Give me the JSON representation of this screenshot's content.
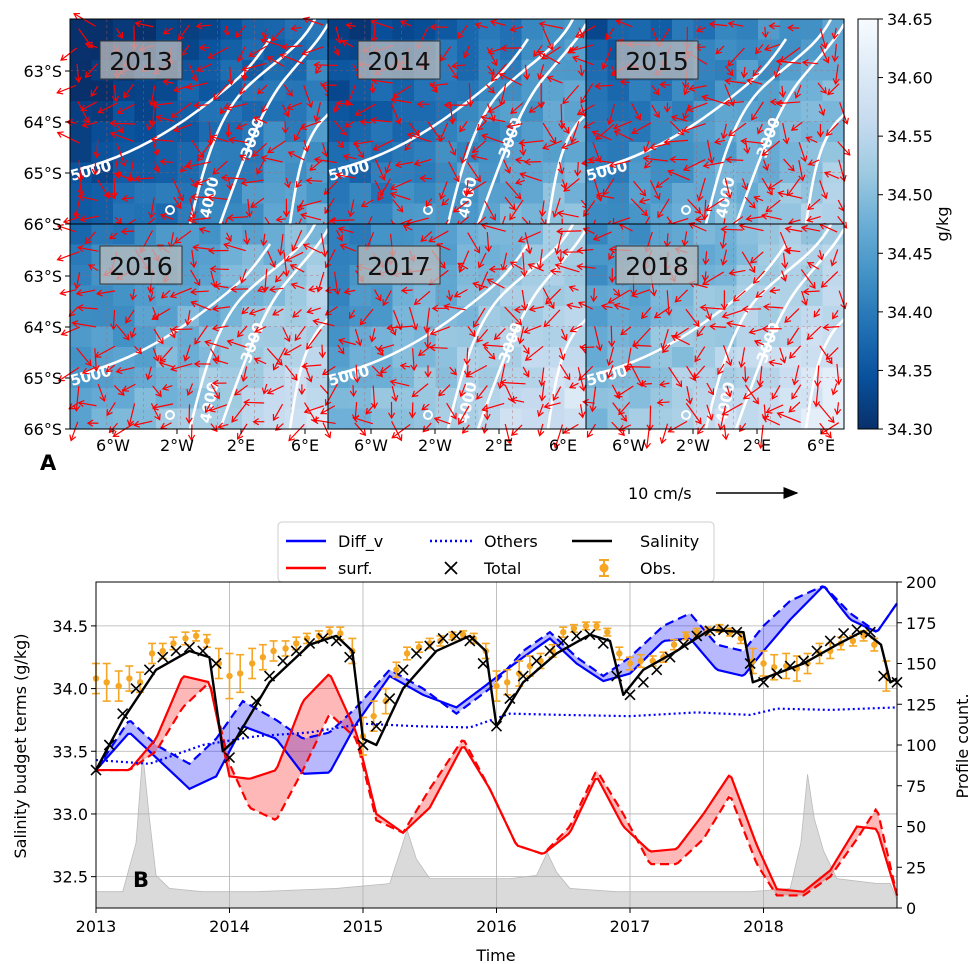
{
  "panel_a": {
    "label": "A",
    "years": [
      "2013",
      "2014",
      "2015",
      "2016",
      "2017",
      "2018"
    ],
    "lat_ticks": [
      "63°S",
      "64°S",
      "65°S",
      "66°S"
    ],
    "lon_ticks": [
      "6°W",
      "2°W",
      "2°E",
      "6°E"
    ],
    "contour_labels": [
      "5000",
      "4000",
      "3000"
    ],
    "scale_label": "10 cm/s",
    "colorbar": {
      "min": 34.3,
      "max": 34.65,
      "ticks": [
        "34.30",
        "34.35",
        "34.40",
        "34.45",
        "34.50",
        "34.55",
        "34.60",
        "34.65"
      ],
      "label": "g/kg",
      "colors": [
        "#08306b",
        "#08519c",
        "#2171b5",
        "#4292c6",
        "#6baed6",
        "#9ecae1",
        "#c6dbef",
        "#deebf7",
        "#f7fbff"
      ]
    },
    "panel_salinity_levels": [
      0.18,
      0.3,
      0.38,
      0.5,
      0.55,
      0.6
    ],
    "arrow_color": "#ff0000"
  },
  "chart_data": {
    "type": "line",
    "label": "B",
    "xlabel": "Time",
    "ylabel": "Salinity budget terms (g/kg)",
    "ylabel_right": "Profile count.",
    "xlim": [
      2013,
      2019
    ],
    "ylim": [
      32.25,
      34.85
    ],
    "ylim_right": [
      0,
      200
    ],
    "x_ticks": [
      "2013",
      "2014",
      "2015",
      "2016",
      "2017",
      "2018"
    ],
    "y_ticks": [
      "32.5",
      "33.0",
      "33.5",
      "34.0",
      "34.5"
    ],
    "y_ticks_right": [
      "0",
      "25",
      "50",
      "75",
      "100",
      "125",
      "150",
      "175",
      "200"
    ],
    "grid": true,
    "legend": {
      "placement": "top-center",
      "entries": [
        {
          "label": "Diff_v",
          "color": "#0000ff",
          "style": "solid"
        },
        {
          "label": "Others",
          "color": "#0000ff",
          "style": "dotted"
        },
        {
          "label": "Salinity",
          "color": "#000000",
          "style": "solid"
        },
        {
          "label": "surf.",
          "color": "#ff0000",
          "style": "solid"
        },
        {
          "label": "Total",
          "color": "#000000",
          "style": "x-marker"
        },
        {
          "label": "Obs.",
          "color": "#f5a623",
          "style": "errorbar"
        }
      ]
    },
    "series": [
      {
        "name": "Diff_v",
        "color": "#0000ff",
        "x": [
          2013,
          2013.25,
          2013.45,
          2013.7,
          2013.9,
          2014.1,
          2014.35,
          2014.55,
          2014.75,
          2014.95,
          2015.2,
          2015.45,
          2015.7,
          2015.95,
          2016.2,
          2016.4,
          2016.6,
          2016.8,
          2017.0,
          2017.25,
          2017.45,
          2017.65,
          2017.85,
          2018.0,
          2018.2,
          2018.45,
          2018.65,
          2018.85,
          2019.0
        ],
        "values": [
          33.35,
          33.65,
          33.45,
          33.2,
          33.3,
          33.7,
          33.6,
          33.32,
          33.33,
          33.72,
          34.1,
          33.95,
          33.85,
          34.05,
          34.25,
          34.4,
          34.2,
          34.06,
          34.12,
          34.38,
          34.4,
          34.15,
          34.1,
          34.3,
          34.55,
          34.82,
          34.55,
          34.45,
          34.68
        ]
      },
      {
        "name": "Diff_v (dashed)",
        "color": "#0000ff",
        "x": [
          2013,
          2013.25,
          2013.45,
          2013.7,
          2013.9,
          2014.1,
          2014.35,
          2014.55,
          2014.75,
          2014.95,
          2015.2,
          2015.45,
          2015.7,
          2015.95,
          2016.2,
          2016.4,
          2016.6,
          2016.8,
          2017.0,
          2017.25,
          2017.45,
          2017.65,
          2017.85,
          2018.0,
          2018.2,
          2018.45,
          2018.65,
          2018.85,
          2019.0
        ],
        "values": [
          33.35,
          33.75,
          33.55,
          33.4,
          33.6,
          33.9,
          33.75,
          33.6,
          33.65,
          33.85,
          34.15,
          34.0,
          33.8,
          34.0,
          34.3,
          34.45,
          34.25,
          34.1,
          34.25,
          34.5,
          34.6,
          34.35,
          34.3,
          34.5,
          34.7,
          34.82,
          34.6,
          34.45,
          34.68
        ]
      },
      {
        "name": "Others",
        "color": "#0000ff",
        "x": [
          2013,
          2013.4,
          2013.8,
          2014.2,
          2014.6,
          2015.0,
          2015.4,
          2015.8,
          2016.1,
          2016.5,
          2017.0,
          2017.5,
          2017.9,
          2018.1,
          2018.5,
          2019.0
        ],
        "values": [
          33.43,
          33.4,
          33.55,
          33.62,
          33.65,
          33.72,
          33.7,
          33.69,
          33.8,
          33.79,
          33.78,
          33.81,
          33.79,
          33.84,
          33.83,
          33.85
        ]
      },
      {
        "name": "surf.",
        "color": "#ff0000",
        "x": [
          2013,
          2013.25,
          2013.45,
          2013.65,
          2013.85,
          2014.0,
          2014.15,
          2014.35,
          2014.55,
          2014.75,
          2014.95,
          2015.1,
          2015.3,
          2015.5,
          2015.75,
          2015.95,
          2016.15,
          2016.35,
          2016.55,
          2016.75,
          2016.95,
          2017.15,
          2017.35,
          2017.55,
          2017.75,
          2017.95,
          2018.1,
          2018.3,
          2018.5,
          2018.7,
          2018.85,
          2019.0
        ],
        "values": [
          33.35,
          33.35,
          33.6,
          34.1,
          34.05,
          33.3,
          33.28,
          33.35,
          33.9,
          34.12,
          33.65,
          33.0,
          32.85,
          33.05,
          33.55,
          33.2,
          32.75,
          32.68,
          32.85,
          33.3,
          32.9,
          32.7,
          32.72,
          33.0,
          33.32,
          32.75,
          32.4,
          32.38,
          32.55,
          32.9,
          32.88,
          32.35
        ]
      },
      {
        "name": "surf. (dashed)",
        "color": "#ff0000",
        "x": [
          2013,
          2013.25,
          2013.45,
          2013.65,
          2013.85,
          2014.0,
          2014.15,
          2014.35,
          2014.55,
          2014.75,
          2014.95,
          2015.1,
          2015.3,
          2015.5,
          2015.75,
          2015.95,
          2016.15,
          2016.35,
          2016.55,
          2016.75,
          2016.95,
          2017.15,
          2017.35,
          2017.55,
          2017.75,
          2017.95,
          2018.1,
          2018.3,
          2018.5,
          2018.7,
          2018.85,
          2019.0
        ],
        "values": [
          33.35,
          33.35,
          33.5,
          33.85,
          34.05,
          33.4,
          33.05,
          32.95,
          33.35,
          33.8,
          33.6,
          32.95,
          32.85,
          33.2,
          33.6,
          33.2,
          32.75,
          32.68,
          32.9,
          33.35,
          33.0,
          32.6,
          32.6,
          32.8,
          33.15,
          32.6,
          32.35,
          32.35,
          32.5,
          32.8,
          33.05,
          32.35
        ]
      },
      {
        "name": "Salinity",
        "color": "#000000",
        "x": [
          2013,
          2013.2,
          2013.45,
          2013.7,
          2013.85,
          2013.95,
          2014.05,
          2014.3,
          2014.6,
          2014.8,
          2014.92,
          2015.0,
          2015.1,
          2015.3,
          2015.55,
          2015.8,
          2015.92,
          2016.0,
          2016.2,
          2016.45,
          2016.7,
          2016.85,
          2016.95,
          2017.1,
          2017.35,
          2017.6,
          2017.85,
          2017.92,
          2018.05,
          2018.3,
          2018.55,
          2018.75,
          2018.88,
          2018.95,
          2019.0
        ],
        "values": [
          33.35,
          33.75,
          34.15,
          34.3,
          34.25,
          33.5,
          33.6,
          34.05,
          34.35,
          34.42,
          34.3,
          33.6,
          33.55,
          34.0,
          34.3,
          34.42,
          34.3,
          33.7,
          34.05,
          34.28,
          34.43,
          34.38,
          33.95,
          34.15,
          34.3,
          34.47,
          34.45,
          34.05,
          34.1,
          34.2,
          34.35,
          34.46,
          34.35,
          34.05,
          34.08
        ]
      },
      {
        "name": "Total",
        "color": "#000000",
        "marker": "x",
        "x": [
          2013,
          2013.1,
          2013.2,
          2013.3,
          2013.4,
          2013.5,
          2013.6,
          2013.7,
          2013.8,
          2013.9,
          2014.0,
          2014.1,
          2014.2,
          2014.3,
          2014.4,
          2014.5,
          2014.6,
          2014.7,
          2014.8,
          2014.9,
          2015.0,
          2015.1,
          2015.2,
          2015.3,
          2015.4,
          2015.5,
          2015.6,
          2015.7,
          2015.8,
          2015.9,
          2016.0,
          2016.1,
          2016.2,
          2016.3,
          2016.4,
          2016.5,
          2016.6,
          2016.7,
          2016.8,
          2016.9,
          2017.0,
          2017.1,
          2017.2,
          2017.3,
          2017.4,
          2017.5,
          2017.6,
          2017.7,
          2017.8,
          2017.9,
          2018.0,
          2018.1,
          2018.2,
          2018.3,
          2018.4,
          2018.5,
          2018.6,
          2018.7,
          2018.8,
          2018.9,
          2019.0
        ],
        "values": [
          33.35,
          33.55,
          33.8,
          34.0,
          34.15,
          34.25,
          34.3,
          34.33,
          34.3,
          34.2,
          33.45,
          33.65,
          33.9,
          34.1,
          34.22,
          34.3,
          34.36,
          34.4,
          34.38,
          34.25,
          33.55,
          33.7,
          33.92,
          34.15,
          34.28,
          34.34,
          34.4,
          34.42,
          34.38,
          34.2,
          33.7,
          33.92,
          34.1,
          34.22,
          34.3,
          34.38,
          34.42,
          34.43,
          34.36,
          34.1,
          33.95,
          34.05,
          34.15,
          34.25,
          34.35,
          34.42,
          34.46,
          34.47,
          34.45,
          34.2,
          34.05,
          34.12,
          34.18,
          34.22,
          34.3,
          34.38,
          34.44,
          34.47,
          34.45,
          34.1,
          34.05
        ]
      },
      {
        "name": "Obs.",
        "color": "#f5a623",
        "marker": "errorbar",
        "x": [
          2013.0,
          2013.08,
          2013.17,
          2013.25,
          2013.33,
          2013.42,
          2013.5,
          2013.58,
          2013.67,
          2013.75,
          2013.83,
          2013.92,
          2014.0,
          2014.08,
          2014.17,
          2014.25,
          2014.33,
          2014.42,
          2014.5,
          2014.58,
          2014.67,
          2014.75,
          2014.83,
          2014.92,
          2015.0,
          2015.08,
          2015.17,
          2015.25,
          2015.33,
          2015.42,
          2015.5,
          2015.58,
          2015.67,
          2015.75,
          2015.83,
          2015.92,
          2016.0,
          2016.08,
          2016.17,
          2016.25,
          2016.33,
          2016.42,
          2016.5,
          2016.58,
          2016.67,
          2016.75,
          2016.83,
          2016.92,
          2017.0,
          2017.08,
          2017.17,
          2017.25,
          2017.33,
          2017.42,
          2017.5,
          2017.58,
          2017.67,
          2017.75,
          2017.83,
          2017.92,
          2018.0,
          2018.08,
          2018.17,
          2018.25,
          2018.33,
          2018.42,
          2018.5,
          2018.58,
          2018.67,
          2018.75,
          2018.83,
          2018.92
        ],
        "values": [
          34.08,
          34.05,
          34.02,
          34.08,
          34.05,
          34.28,
          34.3,
          34.36,
          34.4,
          34.42,
          34.38,
          34.2,
          34.1,
          34.12,
          34.2,
          34.25,
          34.3,
          34.32,
          34.36,
          34.4,
          34.42,
          34.45,
          34.44,
          34.3,
          33.62,
          33.78,
          33.9,
          34.15,
          34.28,
          34.33,
          34.36,
          34.38,
          34.42,
          34.43,
          34.4,
          34.3,
          34.02,
          34.05,
          34.12,
          34.18,
          34.22,
          34.3,
          34.45,
          34.48,
          34.5,
          34.5,
          34.45,
          34.28,
          34.2,
          34.22,
          34.22,
          34.25,
          34.35,
          34.42,
          34.45,
          34.46,
          34.48,
          34.45,
          34.4,
          34.22,
          34.2,
          34.17,
          34.18,
          34.16,
          34.2,
          34.28,
          34.3,
          34.36,
          34.38,
          34.42,
          34.35,
          34.1
        ],
        "err": [
          0.12,
          0.15,
          0.12,
          0.1,
          0.08,
          0.08,
          0.06,
          0.05,
          0.05,
          0.04,
          0.05,
          0.12,
          0.18,
          0.15,
          0.12,
          0.1,
          0.08,
          0.06,
          0.05,
          0.04,
          0.04,
          0.04,
          0.05,
          0.1,
          0.15,
          0.12,
          0.1,
          0.06,
          0.05,
          0.04,
          0.04,
          0.04,
          0.03,
          0.03,
          0.04,
          0.06,
          0.12,
          0.1,
          0.1,
          0.08,
          0.06,
          0.05,
          0.04,
          0.03,
          0.03,
          0.03,
          0.03,
          0.05,
          0.05,
          0.05,
          0.04,
          0.04,
          0.04,
          0.03,
          0.03,
          0.03,
          0.03,
          0.03,
          0.04,
          0.1,
          0.1,
          0.1,
          0.1,
          0.1,
          0.08,
          0.08,
          0.06,
          0.05,
          0.04,
          0.04,
          0.05,
          0.12
        ]
      },
      {
        "name": "Profile count",
        "color": "#d3d3d3",
        "axis": "right",
        "x": [
          2013,
          2013.2,
          2013.3,
          2013.35,
          2013.4,
          2013.45,
          2013.55,
          2013.8,
          2014.2,
          2014.8,
          2015.2,
          2015.28,
          2015.33,
          2015.4,
          2015.5,
          2015.8,
          2016.1,
          2016.3,
          2016.38,
          2016.45,
          2016.55,
          2016.9,
          2017.5,
          2017.9,
          2018.2,
          2018.28,
          2018.33,
          2018.38,
          2018.45,
          2018.55,
          2018.85,
          2018.95,
          2019.0
        ],
        "values": [
          10,
          10,
          40,
          95,
          55,
          20,
          12,
          10,
          10,
          12,
          15,
          35,
          48,
          30,
          18,
          18,
          18,
          20,
          34,
          22,
          12,
          10,
          10,
          10,
          12,
          40,
          82,
          55,
          35,
          18,
          15,
          15,
          5
        ]
      }
    ]
  }
}
